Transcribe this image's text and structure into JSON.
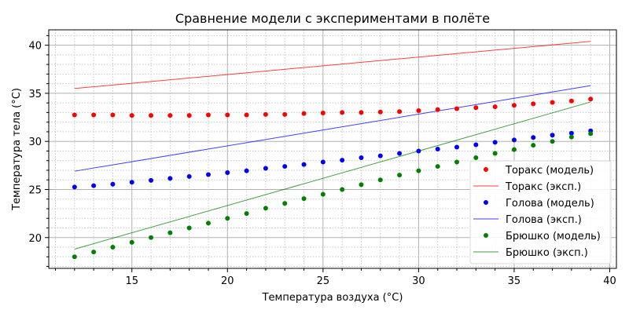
{
  "chart_data": {
    "type": "scatter",
    "title": "Сравнение модели с экспериментами в полёте",
    "xlabel": "Температура воздуха (°C)",
    "ylabel": "Температура тела (°C)",
    "xlim": [
      10.65,
      40.35
    ],
    "ylim": [
      16.8,
      41.6
    ],
    "xticks": [
      15,
      20,
      25,
      30,
      35,
      40
    ],
    "yticks": [
      20,
      25,
      30,
      35,
      40
    ],
    "grid": true,
    "minor_grid": true,
    "legend_position": "lower right",
    "x": [
      12,
      13,
      14,
      15,
      16,
      17,
      18,
      19,
      20,
      21,
      22,
      23,
      24,
      25,
      26,
      27,
      28,
      29,
      30,
      31,
      32,
      33,
      34,
      35,
      36,
      37,
      38,
      39
    ],
    "series": [
      {
        "name": "Торакс (модель)",
        "kind": "scatter",
        "color": "#ff0000",
        "values": [
          32.75,
          32.75,
          32.75,
          32.7,
          32.7,
          32.7,
          32.7,
          32.75,
          32.75,
          32.75,
          32.8,
          32.8,
          32.9,
          32.95,
          33.0,
          33.0,
          33.05,
          33.1,
          33.2,
          33.3,
          33.4,
          33.5,
          33.6,
          33.75,
          33.9,
          34.05,
          34.2,
          34.4
        ]
      },
      {
        "name": "Торакс (эксп.)",
        "kind": "line",
        "color": "#ff0000",
        "x": [
          12,
          39
        ],
        "values": [
          35.5,
          40.4
        ]
      },
      {
        "name": "Голова (модель)",
        "kind": "scatter",
        "color": "#0000ff",
        "values": [
          25.25,
          25.4,
          25.55,
          25.75,
          25.95,
          26.15,
          26.35,
          26.55,
          26.75,
          26.95,
          27.2,
          27.4,
          27.6,
          27.85,
          28.05,
          28.3,
          28.5,
          28.75,
          29.0,
          29.2,
          29.4,
          29.65,
          29.9,
          30.15,
          30.4,
          30.65,
          30.85,
          31.1
        ]
      },
      {
        "name": "Голова (эксп.)",
        "kind": "line",
        "color": "#0000ff",
        "x": [
          12,
          39
        ],
        "values": [
          26.9,
          35.8
        ]
      },
      {
        "name": "Брюшко (модель)",
        "kind": "scatter",
        "color": "#008000",
        "values": [
          18.0,
          18.5,
          19.0,
          19.5,
          20.0,
          20.5,
          21.0,
          21.5,
          22.0,
          22.5,
          23.05,
          23.55,
          24.05,
          24.5,
          25.0,
          25.5,
          26.0,
          26.5,
          26.95,
          27.4,
          27.85,
          28.3,
          28.75,
          29.15,
          29.6,
          30.0,
          30.45,
          30.8
        ]
      },
      {
        "name": "Брюшко (эксп.)",
        "kind": "line",
        "color": "#008000",
        "x": [
          12,
          39
        ],
        "values": [
          18.8,
          34.1
        ]
      }
    ]
  }
}
